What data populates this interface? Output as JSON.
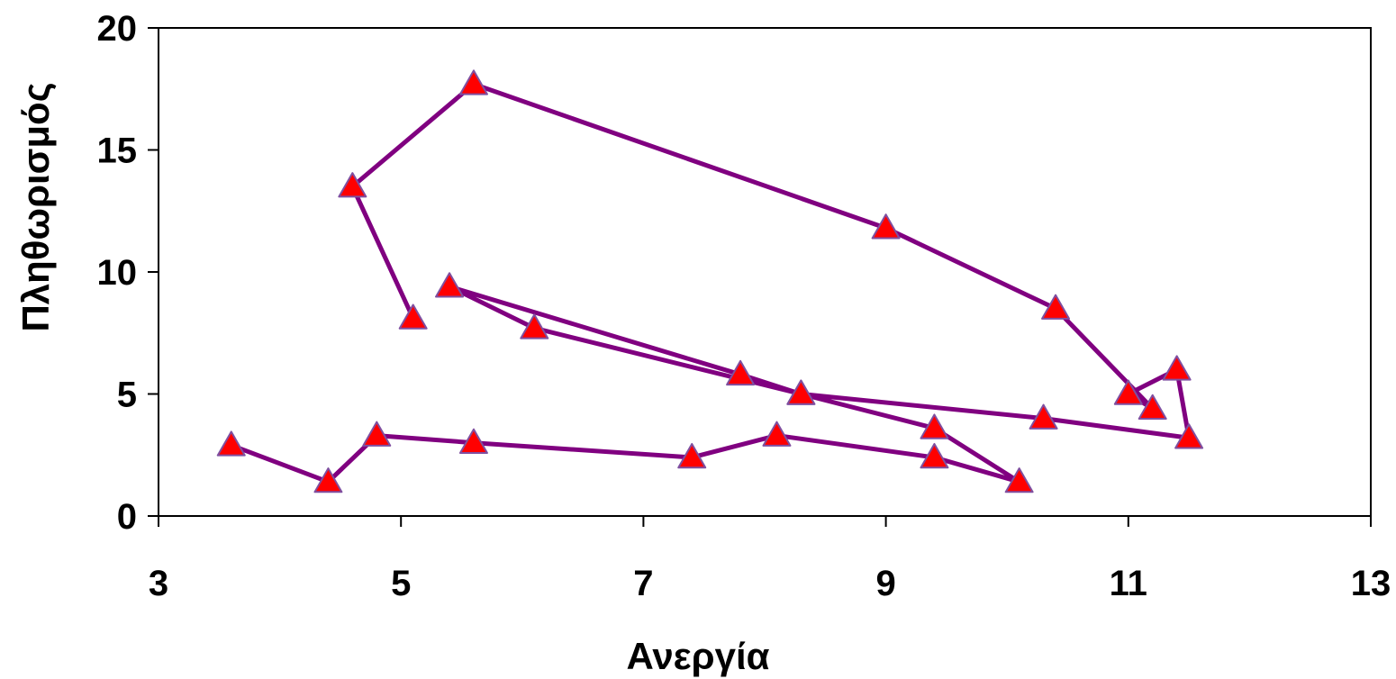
{
  "chart_data": {
    "type": "line",
    "xlabel": "Ανεργία",
    "ylabel": "Πληθωρισμός",
    "xlim": [
      3,
      13
    ],
    "ylim": [
      0,
      20
    ],
    "xticks": [
      "3",
      "5",
      "7",
      "9",
      "11",
      "13"
    ],
    "yticks": [
      "0",
      "5",
      "10",
      "15",
      "20"
    ],
    "grid": false,
    "legend": "none",
    "marker": "triangle",
    "line_color": "#800080",
    "marker_color": "#ff0000",
    "marker_edge_color": "#7f4fa0",
    "series": [
      {
        "x": [
          3.6,
          4.4,
          4.8,
          5.6,
          7.4,
          8.1,
          9.4,
          10.1,
          9.4,
          8.3,
          6.1,
          5.4,
          7.8,
          8.3,
          10.3,
          11.5,
          11.4,
          11.0,
          11.2,
          10.4,
          9.0,
          5.6,
          4.6,
          5.1
        ],
        "y": [
          2.9,
          1.4,
          3.3,
          3.0,
          2.4,
          3.3,
          2.4,
          1.4,
          3.6,
          5.0,
          7.7,
          9.4,
          5.8,
          5.0,
          4.0,
          3.2,
          6.0,
          5.0,
          4.4,
          8.5,
          11.8,
          17.7,
          13.5,
          8.1
        ]
      }
    ]
  }
}
